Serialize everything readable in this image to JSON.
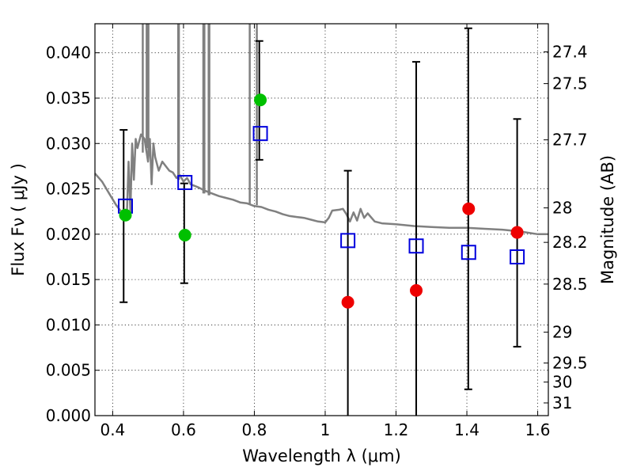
{
  "chart_data": {
    "type": "scatter",
    "title": "",
    "xlabel": "Wavelength  λ (μm)",
    "ylabel": "Flux  Fν  ( μJy )",
    "ylabel_right": "Magnitude (AB)",
    "xlim": [
      0.35,
      1.63
    ],
    "ylim": [
      0.0,
      0.0432
    ],
    "grid": true,
    "x_ticks": [
      0.4,
      0.6,
      0.8,
      1.0,
      1.2,
      1.4,
      1.6
    ],
    "x_tick_labels": [
      "0.4",
      "0.6",
      "0.8",
      "1",
      "1.2",
      "1.4",
      "1.6"
    ],
    "y_ticks": [
      0.0,
      0.005,
      0.01,
      0.015,
      0.02,
      0.025,
      0.03,
      0.035,
      0.04
    ],
    "y_tick_labels": [
      "0.000",
      "0.005",
      "0.010",
      "0.015",
      "0.020",
      "0.025",
      "0.030",
      "0.035",
      "0.040"
    ],
    "right_ticks": [
      {
        "label": "27.4",
        "flux": 0.0401
      },
      {
        "label": "27.5",
        "flux": 0.0366
      },
      {
        "label": "27.7",
        "flux": 0.0304
      },
      {
        "label": "28",
        "flux": 0.0229
      },
      {
        "label": "28.2",
        "flux": 0.0191
      },
      {
        "label": "28.5",
        "flux": 0.0145
      },
      {
        "label": "29",
        "flux": 0.0092
      },
      {
        "label": "29.5",
        "flux": 0.0058
      },
      {
        "label": "30",
        "flux": 0.0037
      },
      {
        "label": "31",
        "flux": 0.0014
      }
    ],
    "series": [
      {
        "name": "model spectrum",
        "kind": "line",
        "color": "#808080",
        "points": [
          [
            0.35,
            0.0267
          ],
          [
            0.37,
            0.0258
          ],
          [
            0.39,
            0.0245
          ],
          [
            0.41,
            0.0232
          ],
          [
            0.43,
            0.0222
          ],
          [
            0.44,
            0.022
          ],
          [
            0.445,
            0.028
          ],
          [
            0.45,
            0.0225
          ],
          [
            0.455,
            0.03
          ],
          [
            0.46,
            0.026
          ],
          [
            0.465,
            0.0305
          ],
          [
            0.47,
            0.0295
          ],
          [
            0.48,
            0.031
          ],
          [
            0.49,
            0.0305
          ],
          [
            0.5,
            0.028
          ],
          [
            0.505,
            0.0305
          ],
          [
            0.51,
            0.0255
          ],
          [
            0.515,
            0.03
          ],
          [
            0.52,
            0.0285
          ],
          [
            0.53,
            0.027
          ],
          [
            0.54,
            0.028
          ],
          [
            0.55,
            0.0275
          ],
          [
            0.56,
            0.027
          ],
          [
            0.57,
            0.0268
          ],
          [
            0.58,
            0.0262
          ],
          [
            0.59,
            0.0265
          ],
          [
            0.6,
            0.0258
          ],
          [
            0.61,
            0.0262
          ],
          [
            0.62,
            0.0255
          ],
          [
            0.64,
            0.0252
          ],
          [
            0.66,
            0.0248
          ],
          [
            0.68,
            0.0245
          ],
          [
            0.7,
            0.0242
          ],
          [
            0.72,
            0.024
          ],
          [
            0.74,
            0.0238
          ],
          [
            0.76,
            0.0235
          ],
          [
            0.78,
            0.0234
          ],
          [
            0.8,
            0.0231
          ],
          [
            0.82,
            0.023
          ],
          [
            0.84,
            0.0227
          ],
          [
            0.86,
            0.0225
          ],
          [
            0.88,
            0.0222
          ],
          [
            0.9,
            0.022
          ],
          [
            0.92,
            0.0219
          ],
          [
            0.94,
            0.0218
          ],
          [
            0.96,
            0.0216
          ],
          [
            0.98,
            0.0214
          ],
          [
            1.0,
            0.0213
          ],
          [
            1.01,
            0.0218
          ],
          [
            1.02,
            0.0226
          ],
          [
            1.04,
            0.0227
          ],
          [
            1.05,
            0.0228
          ],
          [
            1.06,
            0.0222
          ],
          [
            1.07,
            0.0214
          ],
          [
            1.08,
            0.0224
          ],
          [
            1.09,
            0.0215
          ],
          [
            1.1,
            0.0228
          ],
          [
            1.11,
            0.0218
          ],
          [
            1.12,
            0.0223
          ],
          [
            1.14,
            0.0214
          ],
          [
            1.16,
            0.0212
          ],
          [
            1.2,
            0.0211
          ],
          [
            1.25,
            0.0209
          ],
          [
            1.3,
            0.0208
          ],
          [
            1.35,
            0.0207
          ],
          [
            1.4,
            0.0207
          ],
          [
            1.45,
            0.0206
          ],
          [
            1.5,
            0.0205
          ],
          [
            1.55,
            0.0203
          ],
          [
            1.6,
            0.02
          ],
          [
            1.63,
            0.02
          ]
        ]
      },
      {
        "name": "emission spikes",
        "kind": "spikes",
        "color": "#808080",
        "lines": [
          {
            "x": 0.485,
            "base": 0.029,
            "top": 0.0432
          },
          {
            "x": 0.496,
            "base": 0.0295,
            "top": 0.0432
          },
          {
            "x": 0.501,
            "base": 0.029,
            "top": 0.0432
          },
          {
            "x": 0.585,
            "base": 0.026,
            "top": 0.0432
          },
          {
            "x": 0.587,
            "base": 0.026,
            "top": 0.0432
          },
          {
            "x": 0.656,
            "base": 0.0245,
            "top": 0.0432
          },
          {
            "x": 0.658,
            "base": 0.0245,
            "top": 0.0432
          },
          {
            "x": 0.659,
            "base": 0.0245,
            "top": 0.0432
          },
          {
            "x": 0.671,
            "base": 0.0243,
            "top": 0.0432
          },
          {
            "x": 0.673,
            "base": 0.0243,
            "top": 0.0432
          },
          {
            "x": 0.787,
            "base": 0.0233,
            "top": 0.0432
          },
          {
            "x": 0.807,
            "base": 0.0232,
            "top": 0.0432
          }
        ]
      },
      {
        "name": "model photometry",
        "kind": "square",
        "color": "#0000dd",
        "x": [
          0.436,
          0.604,
          0.817,
          1.064,
          1.257,
          1.405,
          1.542
        ],
        "y": [
          0.0231,
          0.0257,
          0.0311,
          0.0193,
          0.0187,
          0.018,
          0.0175
        ]
      },
      {
        "name": "error bars",
        "kind": "errorbar",
        "color": "#000000",
        "bars": [
          {
            "x": 0.431,
            "low": 0.0125,
            "high": 0.0315
          },
          {
            "x": 0.602,
            "low": 0.0146,
            "high": 0.0256
          },
          {
            "x": 0.814,
            "low": 0.0282,
            "high": 0.0413
          },
          {
            "x": 1.064,
            "low": 0.0,
            "high": 0.027
          },
          {
            "x": 1.257,
            "low": 0.0,
            "high": 0.039
          },
          {
            "x": 1.404,
            "low": 0.0029,
            "high": 0.0427
          },
          {
            "x": 1.542,
            "low": 0.0076,
            "high": 0.0327
          }
        ]
      },
      {
        "name": "detections",
        "kind": "circle",
        "color": "#00c000",
        "x": [
          0.436,
          0.604,
          0.817
        ],
        "y": [
          0.0221,
          0.0199,
          0.0348
        ]
      },
      {
        "name": "upper limits",
        "kind": "circle",
        "color": "#ee0000",
        "x": [
          1.064,
          1.257,
          1.405,
          1.542
        ],
        "y": [
          0.0125,
          0.0138,
          0.0228,
          0.0202
        ]
      }
    ]
  }
}
